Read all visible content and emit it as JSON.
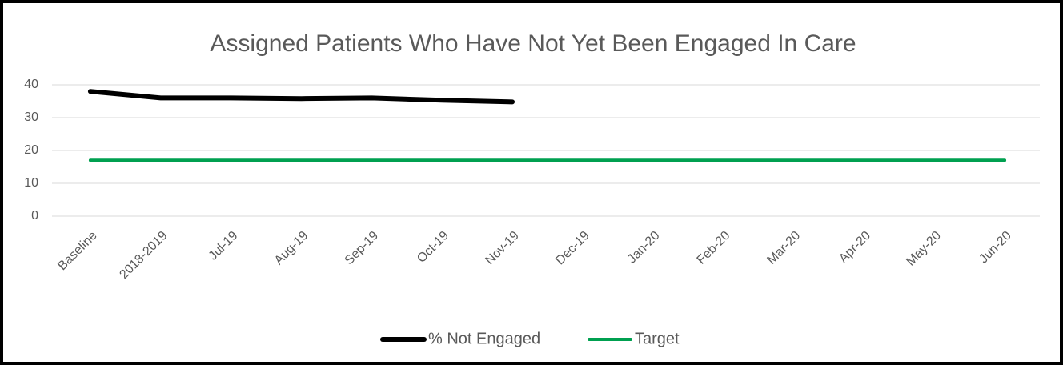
{
  "chart_data": {
    "type": "line",
    "title": "Assigned Patients Who Have Not Yet Been Engaged In Care",
    "categories": [
      "Baseline",
      "2018-2019",
      "Jul-19",
      "Aug-19",
      "Sep-19",
      "Oct-19",
      "Nov-19",
      "Dec-19",
      "Jan-20",
      "Feb-20",
      "Mar-20",
      "Apr-20",
      "May-20",
      "Jun-20"
    ],
    "series": [
      {
        "name": "% Not Engaged",
        "color": "#000000",
        "values": [
          38,
          36,
          36,
          35.8,
          36,
          35.3,
          34.8,
          null,
          null,
          null,
          null,
          null,
          null,
          null
        ]
      },
      {
        "name": "Target",
        "color": "#00a050",
        "values": [
          17,
          17,
          17,
          17,
          17,
          17,
          17,
          17,
          17,
          17,
          17,
          17,
          17,
          17
        ]
      }
    ],
    "ylim": [
      0,
      40
    ],
    "yticks": [
      0,
      10,
      20,
      30,
      40
    ],
    "grid": true,
    "legend": "bottom"
  }
}
